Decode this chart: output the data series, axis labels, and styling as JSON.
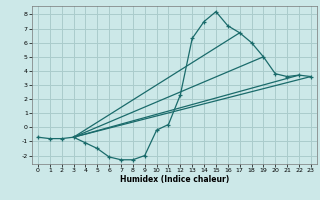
{
  "background_color": "#cce8e8",
  "grid_color": "#aacccc",
  "line_color": "#1a6b6b",
  "xlabel": "Humidex (Indice chaleur)",
  "xlim": [
    -0.5,
    23.5
  ],
  "ylim": [
    -2.6,
    8.6
  ],
  "xticks": [
    0,
    1,
    2,
    3,
    4,
    5,
    6,
    7,
    8,
    9,
    10,
    11,
    12,
    13,
    14,
    15,
    16,
    17,
    18,
    19,
    20,
    21,
    22,
    23
  ],
  "yticks": [
    -2,
    -1,
    0,
    1,
    2,
    3,
    4,
    5,
    6,
    7,
    8
  ],
  "series_main": {
    "x": [
      0,
      1,
      2,
      3,
      4,
      5,
      6,
      7,
      8,
      9,
      10,
      11,
      12,
      13,
      14,
      15,
      16,
      17,
      18,
      19,
      20,
      21,
      22,
      23
    ],
    "y": [
      -0.7,
      -0.8,
      -0.8,
      -0.7,
      -1.1,
      -1.5,
      -2.1,
      -2.3,
      -2.3,
      -2.0,
      -0.2,
      0.2,
      2.3,
      6.3,
      7.5,
      8.2,
      7.2,
      6.7,
      6.0,
      5.0,
      3.8,
      3.6,
      3.7,
      3.6
    ]
  },
  "series_lines": [
    {
      "x": [
        3,
        23
      ],
      "y": [
        -0.7,
        3.6
      ]
    },
    {
      "x": [
        3,
        22
      ],
      "y": [
        -0.7,
        3.7
      ]
    },
    {
      "x": [
        3,
        19
      ],
      "y": [
        -0.7,
        5.0
      ]
    },
    {
      "x": [
        3,
        17
      ],
      "y": [
        -0.7,
        6.7
      ]
    }
  ]
}
